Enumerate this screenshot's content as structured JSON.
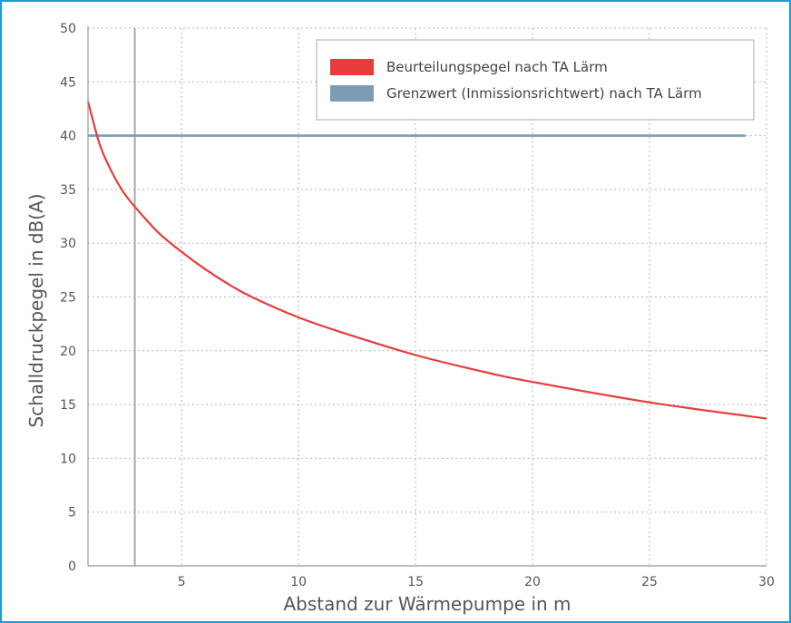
{
  "chart_data": {
    "type": "line",
    "xlabel": "Abstand zur Wärmepumpe in m",
    "ylabel": "Schalldruckpegel in dB(A)",
    "xlim": [
      1,
      30
    ],
    "ylim": [
      0,
      50
    ],
    "x_ticks": [
      5,
      10,
      15,
      20,
      25,
      30
    ],
    "y_ticks": [
      0,
      5,
      10,
      15,
      20,
      25,
      30,
      35,
      40,
      45,
      50
    ],
    "grid": true,
    "legend_position": "top-right",
    "marker_line_x": 3,
    "series": [
      {
        "name": "Beurteilungspegel nach TA Lärm",
        "color": "#e63c3c",
        "x": [
          1,
          1.5,
          2,
          2.5,
          3,
          4,
          5,
          6,
          7,
          8,
          10,
          12,
          15,
          18,
          20,
          25,
          30
        ],
        "y": [
          43.2,
          39.2,
          36.7,
          34.8,
          33.4,
          31.0,
          29.2,
          27.6,
          26.2,
          25.0,
          23.1,
          21.6,
          19.6,
          18.0,
          17.1,
          15.2,
          13.7
        ]
      },
      {
        "name": "Grenzwert (Inmissionsrichtwert) nach TA Lärm",
        "color": "#7a9db3",
        "x": [
          1,
          29.1
        ],
        "y": [
          40,
          40
        ]
      }
    ]
  }
}
